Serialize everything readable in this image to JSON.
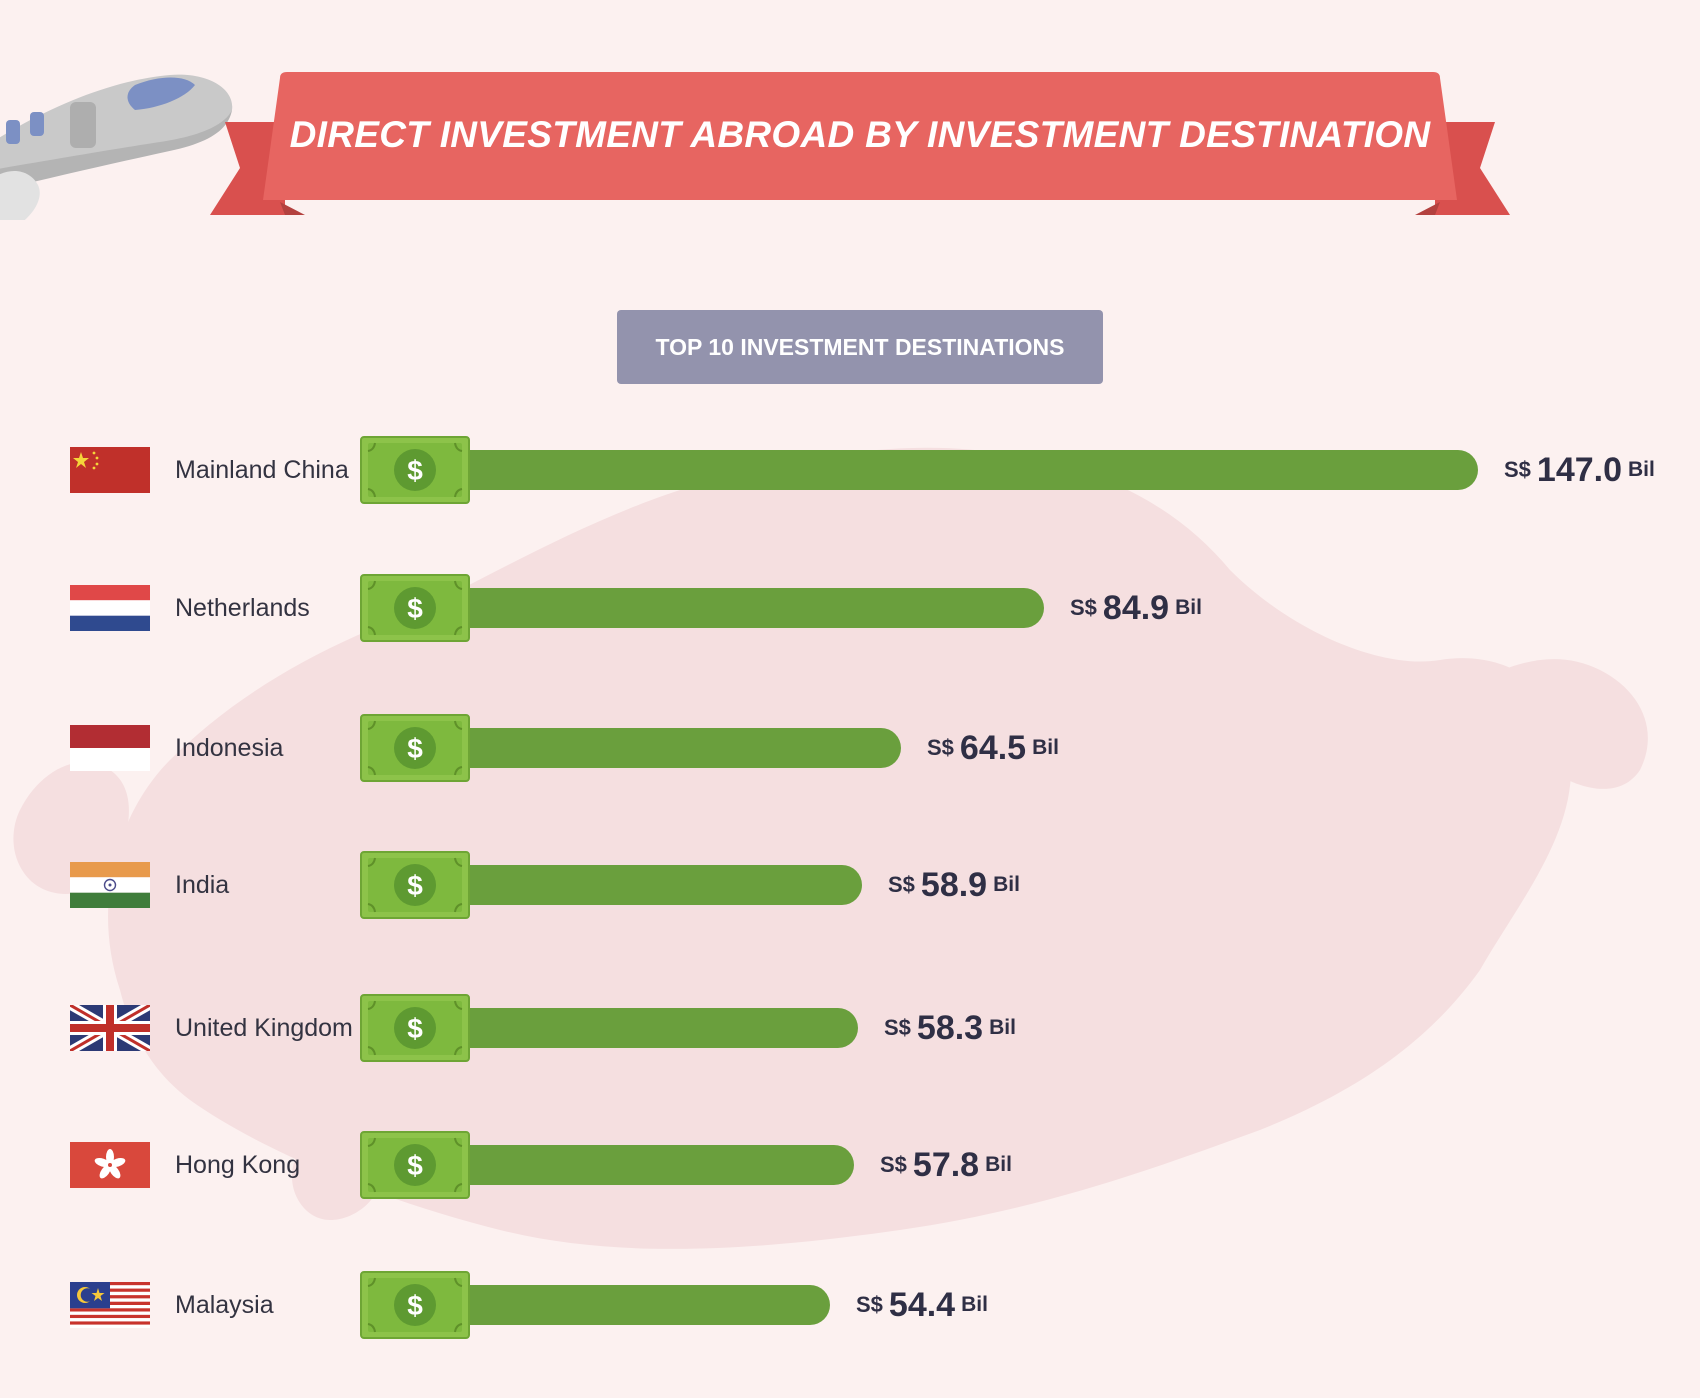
{
  "header": {
    "title": "DIRECT INVESTMENT ABROAD BY INVESTMENT DESTINATION",
    "subtitle": "TOP 10 INVESTMENT DESTINATIONS"
  },
  "colors": {
    "background": "#fcf1f0",
    "banner": "#e76561",
    "banner_dark": "#d9504e",
    "subtitle_box": "#9393ad",
    "bar": "#6a9f3d",
    "text": "#2f2f45"
  },
  "icons": {
    "bill": "dollar-bill-icon",
    "decoration": "airplane-icon"
  },
  "chart_data": {
    "type": "bar",
    "orientation": "horizontal",
    "currency_prefix": "S$",
    "unit": "Bil",
    "categories": [
      "Mainland China",
      "Netherlands",
      "Indonesia",
      "India",
      "United Kingdom",
      "Hong Kong",
      "Malaysia"
    ],
    "values": [
      147.0,
      84.9,
      64.5,
      58.9,
      58.3,
      57.8,
      54.4
    ],
    "labels": [
      "147.0",
      "84.9",
      "64.5",
      "58.9",
      "58.3",
      "57.8",
      "54.4"
    ],
    "flags": [
      "china-flag-icon",
      "netherlands-flag-icon",
      "indonesia-flag-icon",
      "india-flag-icon",
      "uk-flag-icon",
      "hong-kong-flag-icon",
      "malaysia-flag-icon"
    ]
  }
}
